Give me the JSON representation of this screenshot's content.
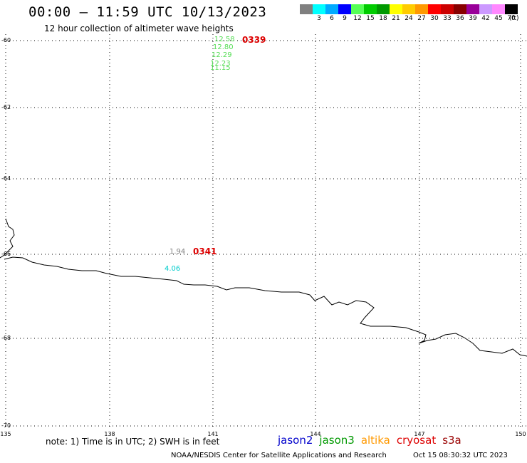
{
  "header": {
    "title": "00:00 – 11:59 UTC 10/13/2023",
    "subtitle": "12 hour collection of altimeter wave heights"
  },
  "scale": {
    "unit": "(ft)",
    "items": [
      {
        "color": "#808080",
        "label": ""
      },
      {
        "color": "#00ffff",
        "label": "3"
      },
      {
        "color": "#00aaff",
        "label": "6"
      },
      {
        "color": "#0000ff",
        "label": "9"
      },
      {
        "color": "#55ff55",
        "label": "12"
      },
      {
        "color": "#00cc00",
        "label": "15"
      },
      {
        "color": "#009900",
        "label": "18"
      },
      {
        "color": "#ffff00",
        "label": "21"
      },
      {
        "color": "#ffcc00",
        "label": "24"
      },
      {
        "color": "#ff9900",
        "label": "27"
      },
      {
        "color": "#ff0000",
        "label": "30"
      },
      {
        "color": "#cc0000",
        "label": "33"
      },
      {
        "color": "#880000",
        "label": "36"
      },
      {
        "color": "#990099",
        "label": "39"
      },
      {
        "color": "#cc99ff",
        "label": "42"
      },
      {
        "color": "#ff88ff",
        "label": "45"
      },
      {
        "color": "#000000",
        "label": "70"
      }
    ]
  },
  "map": {
    "lat_labels": [
      "-60",
      "-62",
      "-64",
      "-66",
      "-68",
      "-70"
    ],
    "lon_labels": [
      "135",
      "138",
      "141",
      "144",
      "147",
      "150"
    ]
  },
  "observations": [
    {
      "text": "12.58",
      "color": "#55dd55"
    },
    {
      "text": "12.80",
      "color": "#55dd55"
    },
    {
      "text": "12.29",
      "color": "#55dd55"
    },
    {
      "text": "12.23",
      "color": "#55dd55"
    },
    {
      "text": "11.15",
      "color": "#55dd55"
    },
    {
      "text": "1.94",
      "color": "#808080"
    },
    {
      "text": "4.06",
      "color": "#00cccc"
    }
  ],
  "passes": [
    {
      "text": "0339",
      "color": "#dd0000"
    },
    {
      "text": "0341",
      "color": "#dd0000"
    }
  ],
  "footer": {
    "note": "note: 1) Time is in UTC; 2) SWH is in feet",
    "satellites": [
      {
        "name": "jason2",
        "color": "#0000cc"
      },
      {
        "name": "jason3",
        "color": "#009900"
      },
      {
        "name": "altika",
        "color": "#ff9900"
      },
      {
        "name": "cryosat",
        "color": "#dd0000"
      },
      {
        "name": "s3a",
        "color": "#990000"
      }
    ],
    "credit": "NOAA/NESDIS Center for Satellite Applications and Research",
    "timestamp": "Oct 15 08:30:32 UTC 2023"
  }
}
